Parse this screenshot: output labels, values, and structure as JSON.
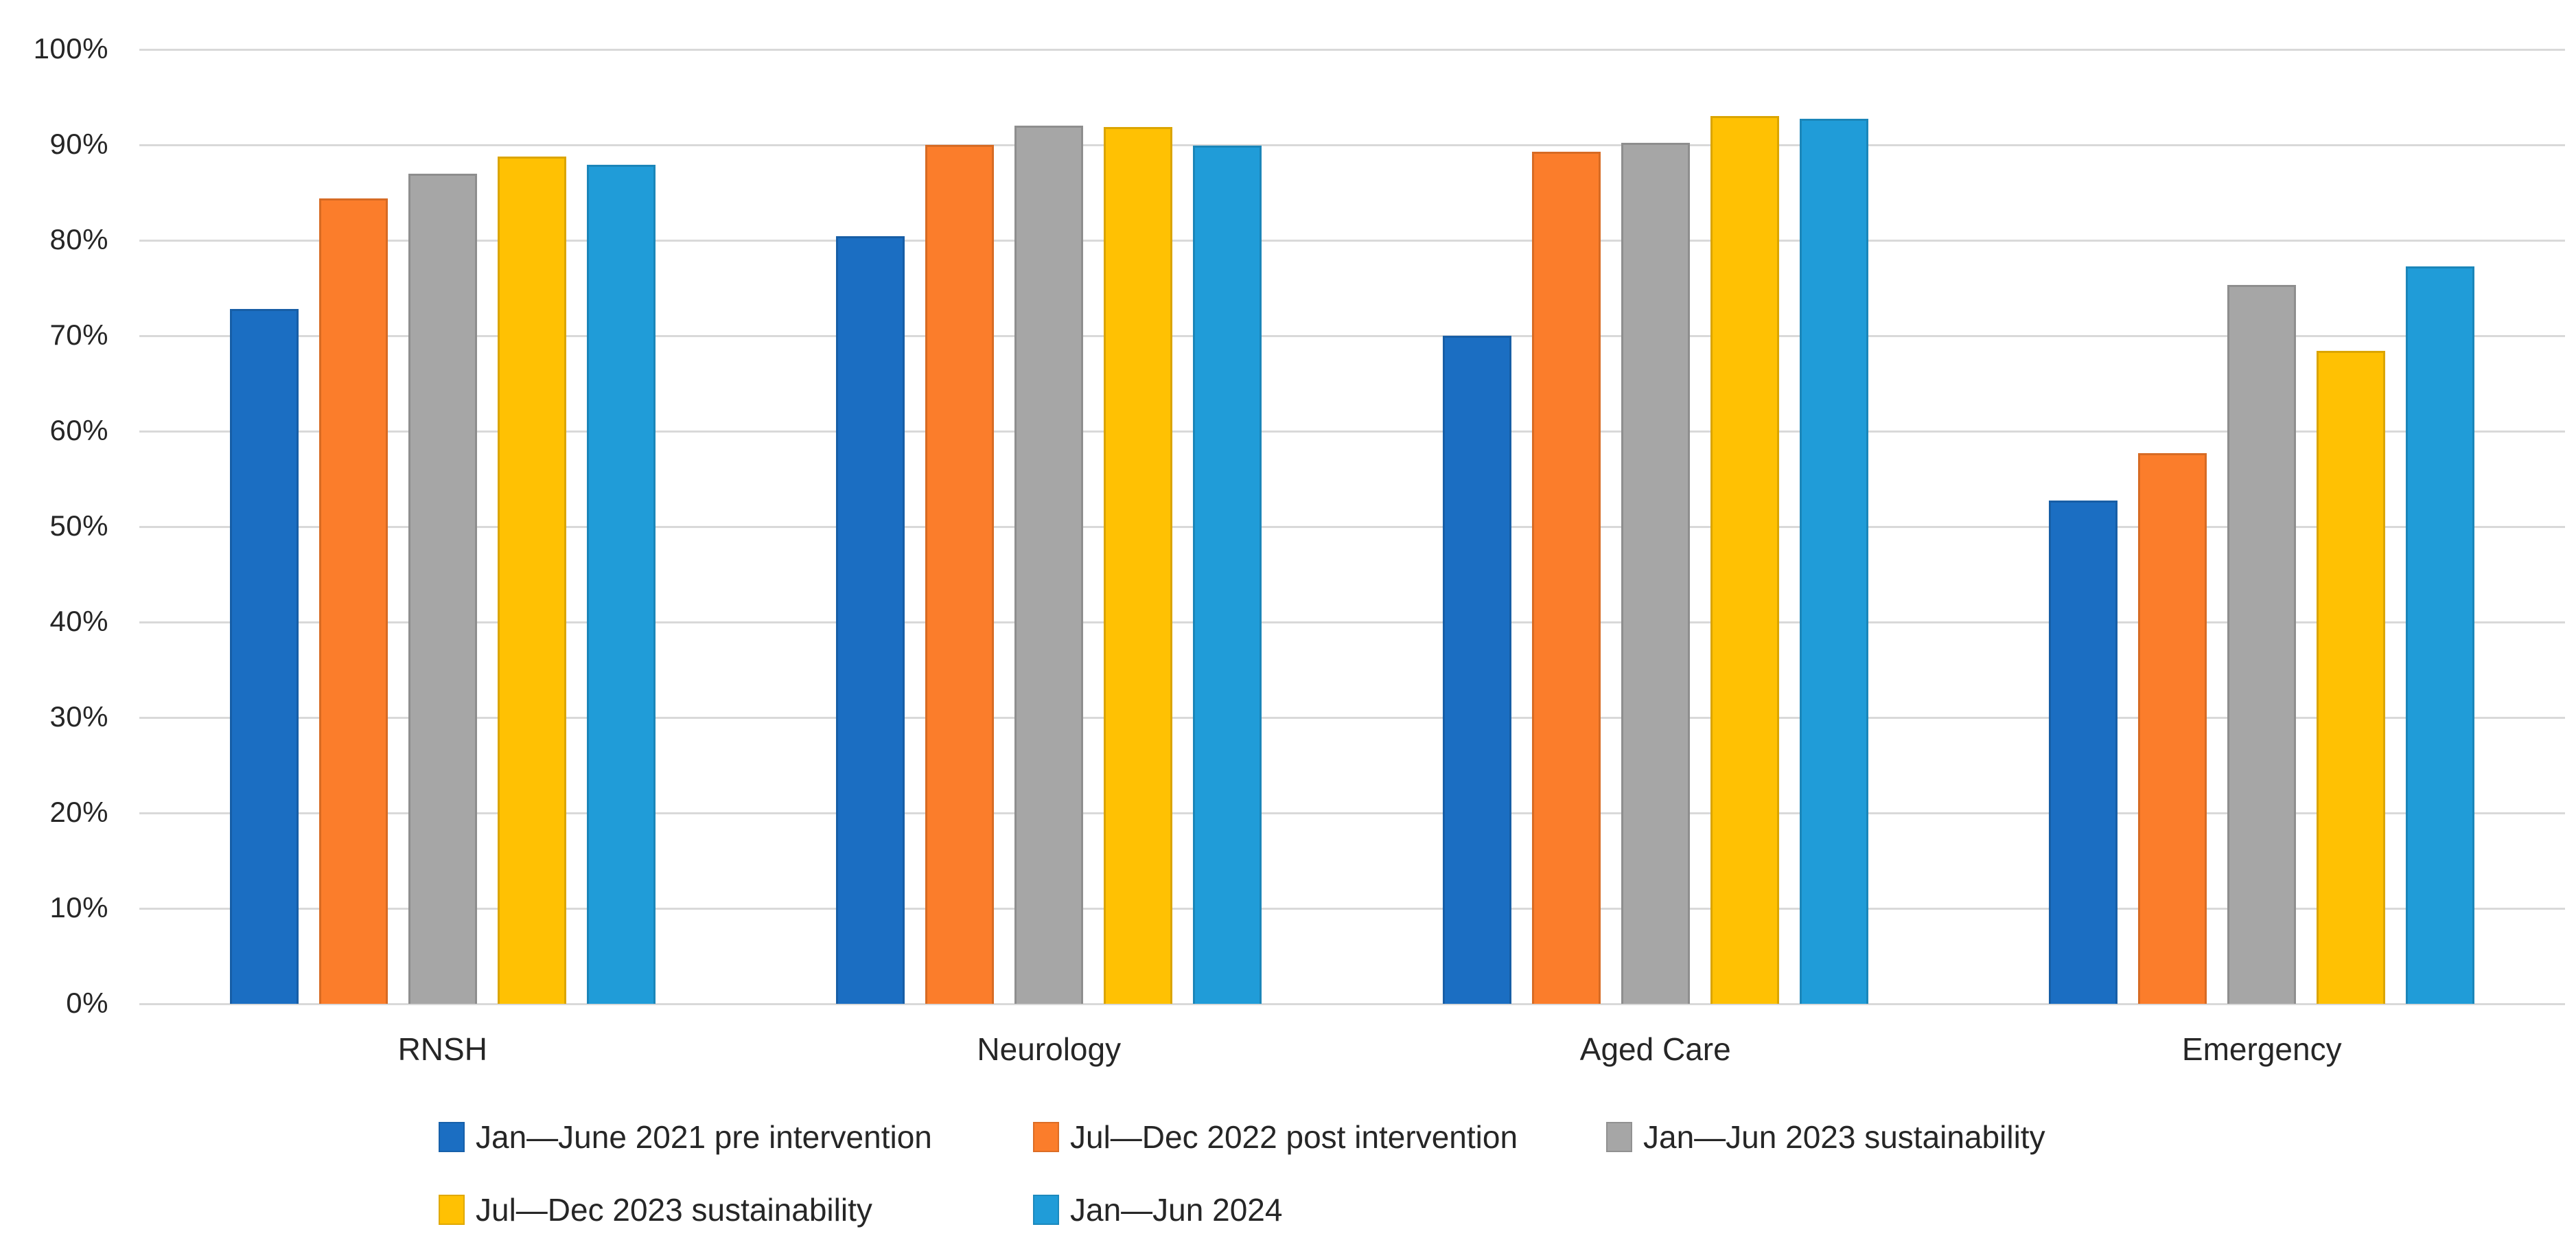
{
  "chart_data": {
    "type": "bar",
    "title": "",
    "xlabel": "",
    "ylabel": "",
    "ylim": [
      0,
      100
    ],
    "grid": true,
    "legend_position": "bottom",
    "yticks": [
      "0%",
      "10%",
      "20%",
      "30%",
      "40%",
      "50%",
      "60%",
      "70%",
      "80%",
      "90%",
      "100%"
    ],
    "categories": [
      "RNSH",
      "Neurology",
      "Aged Care",
      "Emergency"
    ],
    "series": [
      {
        "name": "Jan—June 2021 pre intervention",
        "color": "#1B6EC2",
        "values": [
          72.8,
          80.4,
          70.0,
          52.7
        ]
      },
      {
        "name": "Jul—Dec 2022 post intervention",
        "color": "#FB7D2B",
        "values": [
          84.4,
          90.0,
          89.3,
          57.7
        ]
      },
      {
        "name": "Jan—Jun 2023 sustainability",
        "color": "#A6A6A6",
        "values": [
          87.0,
          92.0,
          90.2,
          75.3
        ]
      },
      {
        "name": "Jul—Dec 2023 sustainability",
        "color": "#FFC103",
        "values": [
          88.8,
          91.9,
          93.0,
          68.4
        ]
      },
      {
        "name": "Jan—Jun 2024",
        "color": "#209CD8",
        "values": [
          87.9,
          89.9,
          92.7,
          77.3
        ]
      }
    ],
    "colors": {
      "gridline": "#D9D9D9",
      "axis_line": "#D9D9D9",
      "text": "#262626",
      "background": "#FFFFFF"
    }
  }
}
